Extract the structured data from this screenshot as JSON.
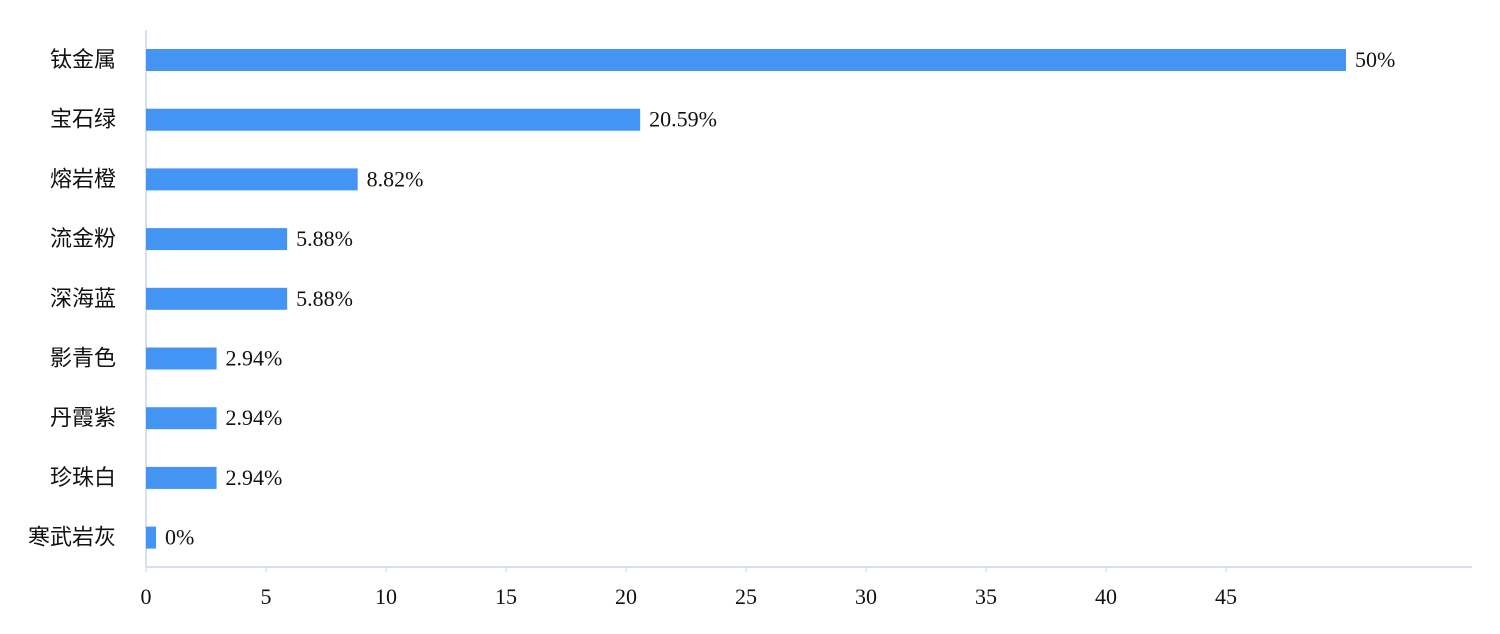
{
  "chart_data": {
    "type": "hbar",
    "categories": [
      "钛金属",
      "宝石绿",
      "熔岩橙",
      "流金粉",
      "深海蓝",
      "影青色",
      "丹霞紫",
      "珍珠白",
      "寒武岩灰"
    ],
    "values": [
      50,
      20.59,
      8.82,
      5.88,
      5.88,
      2.94,
      2.94,
      2.94,
      0
    ],
    "value_labels": [
      "50%",
      "20.59%",
      "8.82%",
      "5.88%",
      "5.88%",
      "2.94%",
      "2.94%",
      "2.94%",
      "0%"
    ],
    "color": "#4494f4",
    "xlim": [
      0,
      55
    ],
    "xticks": [
      0,
      5,
      10,
      15,
      20,
      25,
      30,
      35,
      40,
      45
    ]
  }
}
